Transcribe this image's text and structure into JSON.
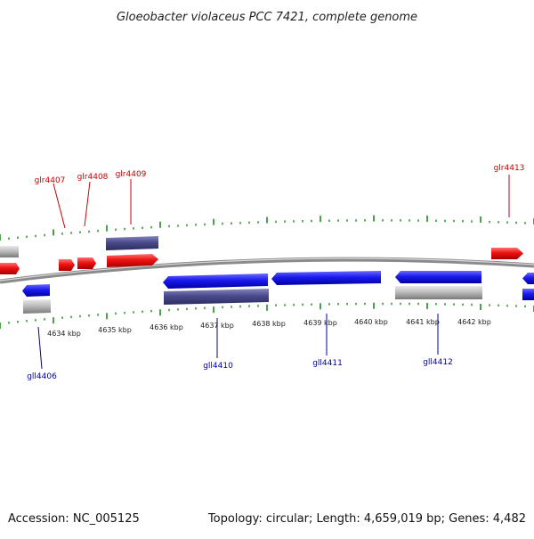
{
  "title": "Gloeobacter violaceus PCC 7421, complete genome",
  "footer": {
    "accession": "Accession: NC_005125",
    "summary": "Topology: circular; Length: 4,659,019 bp; Genes: 4,482"
  },
  "colors": {
    "forward_gene": "#ee1111",
    "reverse_gene": "#1a1aee",
    "rna_feature": "#4a4a8c",
    "other_feature": "#bdbdbd",
    "backbone": "#8a8a8a",
    "tick": "#1e8a1e",
    "forward_label": "#cc0000",
    "reverse_label": "#00009a"
  },
  "ticks": [
    "4634 kbp",
    "4635 kbp",
    "4636 kbp",
    "4637 kbp",
    "4638 kbp",
    "4639 kbp",
    "4640 kbp",
    "4641 kbp",
    "4642 kbp"
  ],
  "genes_forward": [
    "glr4407",
    "glr4408",
    "glr4409",
    "glr4413"
  ],
  "genes_reverse": [
    "gll4406",
    "gll4410",
    "gll4411",
    "gll4412"
  ]
}
